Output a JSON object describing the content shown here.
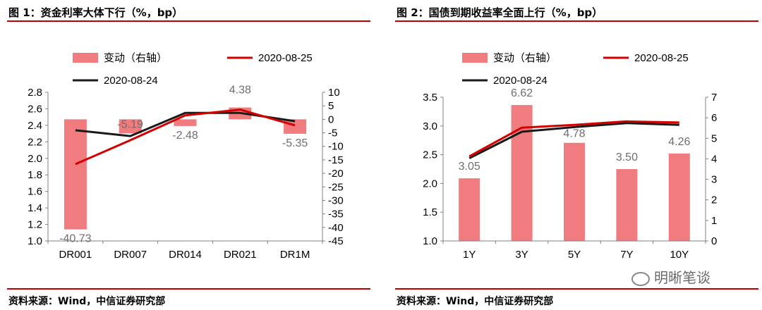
{
  "charts": [
    {
      "figure_title": "图 1：资金利率大体下行（%，bp）",
      "source": "资料来源：Wind，中信证券研究部",
      "legend": {
        "bar": "变动（右轴）",
        "line_new": "2020-08-25",
        "line_old": "2020-08-24"
      },
      "colors": {
        "bar": "#f07c80",
        "line_new": "#d40000",
        "line_old": "#1a1a1a",
        "label": "#6e6e6e"
      }
    },
    {
      "figure_title": "图 2：国债到期收益率全面上行（%，bp）",
      "source": "资料来源：Wind，中信证券研究部",
      "legend": {
        "bar": "变动（右轴）",
        "line_new": "2020-08-25",
        "line_old": "2020-08-24"
      },
      "colors": {
        "bar": "#f07c80",
        "line_new": "#d40000",
        "line_old": "#1a1a1a",
        "label": "#6e6e6e"
      }
    }
  ],
  "watermark": "明晰笔谈",
  "chart_data": [
    {
      "type": "bar+line",
      "categories": [
        "DR001",
        "DR007",
        "DR014",
        "DR021",
        "DR1M"
      ],
      "y_left": {
        "range": [
          1.0,
          2.8
        ],
        "ticks": [
          "1.0",
          "1.2",
          "1.4",
          "1.6",
          "1.8",
          "2.0",
          "2.2",
          "2.4",
          "2.6",
          "2.8"
        ]
      },
      "y_right": {
        "range": [
          -45,
          10
        ],
        "ticks": [
          "10",
          "5",
          "0",
          "-5",
          "-10",
          "-15",
          "-20",
          "-25",
          "-30",
          "-35",
          "-40",
          "-45"
        ]
      },
      "bar_values": [
        -40.73,
        -5.19,
        -2.48,
        4.38,
        -5.35
      ],
      "bar_labels": [
        "-40.73",
        "-5.19",
        "-2.48",
        "4.38",
        "-5.35"
      ],
      "series": [
        {
          "name": "2020-08-25",
          "axis": "left",
          "values": [
            1.93,
            2.22,
            2.52,
            2.59,
            2.4
          ]
        },
        {
          "name": "2020-08-24",
          "axis": "left",
          "values": [
            2.34,
            2.27,
            2.55,
            2.55,
            2.45
          ]
        }
      ]
    },
    {
      "type": "bar+line",
      "categories": [
        "1Y",
        "3Y",
        "5Y",
        "7Y",
        "10Y"
      ],
      "y_left": {
        "range": [
          1.0,
          3.5
        ],
        "ticks": [
          "1.0",
          "1.5",
          "2.0",
          "2.5",
          "3.0",
          "3.5"
        ]
      },
      "y_right": {
        "range": [
          0,
          7
        ],
        "ticks": [
          "0",
          "1",
          "2",
          "3",
          "4",
          "5",
          "6",
          "7"
        ]
      },
      "bar_values": [
        3.05,
        6.62,
        4.78,
        3.5,
        4.26
      ],
      "bar_labels": [
        "3.05",
        "6.62",
        "4.78",
        "3.50",
        "4.26"
      ],
      "series": [
        {
          "name": "2020-08-25",
          "axis": "left",
          "values": [
            2.47,
            2.97,
            3.02,
            3.08,
            3.06
          ]
        },
        {
          "name": "2020-08-24",
          "axis": "left",
          "values": [
            2.44,
            2.9,
            2.98,
            3.05,
            3.02
          ]
        }
      ]
    }
  ]
}
